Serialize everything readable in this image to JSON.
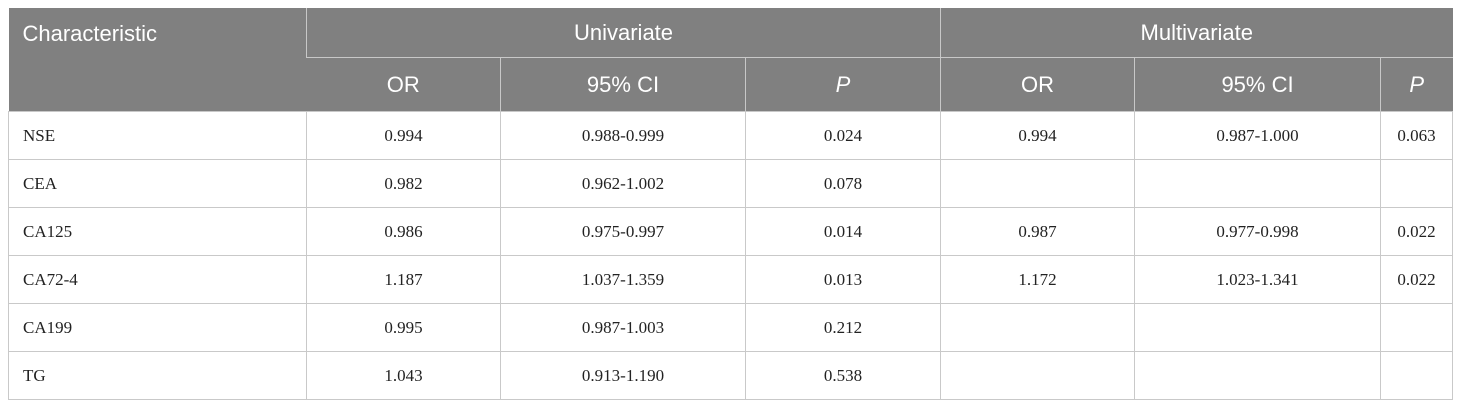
{
  "headers": {
    "characteristic": "Characteristic",
    "univariate": "Univariate",
    "multivariate": "Multivariate",
    "or": "OR",
    "ci": "95% CI",
    "p": "P"
  },
  "rows": [
    {
      "name": "NSE",
      "u_or": "0.994",
      "u_ci": "0.988-0.999",
      "u_p": "0.024",
      "m_or": "0.994",
      "m_ci": "0.987-1.000",
      "m_p": "0.063"
    },
    {
      "name": "CEA",
      "u_or": "0.982",
      "u_ci": "0.962-1.002",
      "u_p": "0.078",
      "m_or": "",
      "m_ci": "",
      "m_p": ""
    },
    {
      "name": "CA125",
      "u_or": "0.986",
      "u_ci": "0.975-0.997",
      "u_p": "0.014",
      "m_or": "0.987",
      "m_ci": "0.977-0.998",
      "m_p": "0.022"
    },
    {
      "name": "CA72-4",
      "u_or": "1.187",
      "u_ci": "1.037-1.359",
      "u_p": "0.013",
      "m_or": "1.172",
      "m_ci": "1.023-1.341",
      "m_p": "0.022"
    },
    {
      "name": "CA199",
      "u_or": "0.995",
      "u_ci": "0.987-1.003",
      "u_p": "0.212",
      "m_or": "",
      "m_ci": "",
      "m_p": ""
    },
    {
      "name": "TG",
      "u_or": "1.043",
      "u_ci": "0.913-1.190",
      "u_p": "0.538",
      "m_or": "",
      "m_ci": "",
      "m_p": ""
    }
  ]
}
